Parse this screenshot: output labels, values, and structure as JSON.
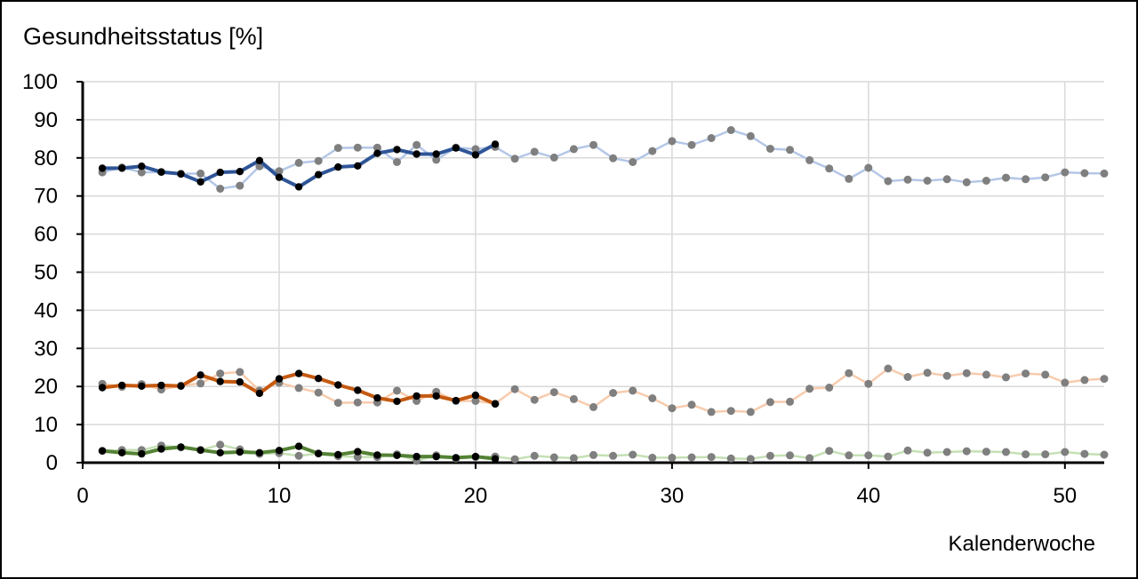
{
  "chart_data": {
    "type": "line",
    "ylabel": "Gesundheitsstatus [%]",
    "xlabel": "Kalenderwoche",
    "xlim": [
      0,
      52
    ],
    "ylim": [
      0,
      100
    ],
    "xticks": [
      0,
      10,
      20,
      30,
      40,
      50
    ],
    "yticks": [
      0,
      10,
      20,
      30,
      40,
      50,
      60,
      70,
      80,
      90,
      100
    ],
    "grid": true,
    "legend": "none",
    "series": [
      {
        "key": "blue_prev",
        "color": "#b4c7e7",
        "point_color": "#7f7f7f",
        "x": [
          1,
          2,
          3,
          4,
          5,
          6,
          7,
          8,
          9,
          10,
          11,
          12,
          13,
          14,
          15,
          16,
          17,
          18,
          19,
          20,
          21,
          22,
          23,
          24,
          25,
          26,
          27,
          28,
          29,
          30,
          31,
          32,
          33,
          34,
          35,
          36,
          37,
          38,
          39,
          40,
          41,
          42,
          43,
          44,
          45,
          46,
          47,
          48,
          49,
          50,
          51,
          52
        ],
        "values": [
          76.2,
          77.5,
          76.2,
          76.3,
          75.8,
          75.9,
          71.9,
          72.7,
          77.8,
          76.5,
          78.7,
          79.2,
          82.6,
          82.7,
          82.7,
          78.9,
          83.4,
          79.5,
          82.7,
          82.3,
          82.9,
          79.8,
          81.6,
          80.1,
          82.3,
          83.4,
          79.9,
          78.9,
          81.8,
          84.4,
          83.4,
          85.2,
          87.3,
          85.7,
          82.4,
          82.1,
          79.4,
          77.2,
          74.5,
          77.4,
          73.9,
          74.3,
          74.0,
          74.4,
          73.6,
          74.0,
          74.8,
          74.4,
          74.9,
          76.2,
          76.0,
          75.9
        ]
      },
      {
        "key": "orange_prev",
        "color": "#f8cbad",
        "point_color": "#7f7f7f",
        "x": [
          1,
          2,
          3,
          4,
          5,
          6,
          7,
          8,
          9,
          10,
          11,
          12,
          13,
          14,
          15,
          16,
          17,
          18,
          19,
          20,
          21,
          22,
          23,
          24,
          25,
          26,
          27,
          28,
          29,
          30,
          31,
          32,
          33,
          34,
          35,
          36,
          37,
          38,
          39,
          40,
          41,
          42,
          43,
          44,
          45,
          46,
          47,
          48,
          49,
          50,
          51,
          52
        ],
        "values": [
          20.7,
          19.9,
          20.6,
          19.2,
          20.2,
          20.8,
          23.4,
          23.8,
          18.9,
          21.0,
          19.6,
          18.4,
          15.7,
          15.8,
          15.8,
          18.9,
          16.2,
          18.6,
          16.2,
          16.2,
          15.5,
          19.3,
          16.5,
          18.5,
          16.7,
          14.6,
          18.3,
          18.9,
          16.9,
          14.3,
          15.2,
          13.3,
          13.6,
          13.3,
          15.9,
          16.0,
          19.4,
          19.7,
          23.5,
          20.7,
          24.7,
          22.5,
          23.6,
          22.8,
          23.5,
          23.1,
          22.4,
          23.4,
          23.1,
          21.0,
          21.7,
          22.0
        ]
      },
      {
        "key": "green_prev",
        "color": "#c5e0b4",
        "point_color": "#7f7f7f",
        "x": [
          1,
          2,
          3,
          4,
          5,
          6,
          7,
          8,
          9,
          10,
          11,
          12,
          13,
          14,
          15,
          16,
          17,
          18,
          19,
          20,
          21,
          22,
          23,
          24,
          25,
          26,
          27,
          28,
          29,
          30,
          31,
          32,
          33,
          34,
          35,
          36,
          37,
          38,
          39,
          40,
          41,
          42,
          43,
          44,
          45,
          46,
          47,
          48,
          49,
          50,
          51,
          52
        ],
        "values": [
          3.1,
          3.3,
          3.3,
          4.5,
          4.0,
          3.3,
          4.7,
          3.5,
          2.3,
          2.5,
          1.8,
          2.4,
          1.7,
          1.5,
          1.5,
          2.2,
          0.5,
          1.9,
          1.1,
          1.5,
          1.6,
          0.9,
          1.8,
          1.4,
          1.2,
          2.0,
          1.8,
          2.1,
          1.3,
          1.3,
          1.4,
          1.5,
          1.1,
          1.0,
          1.8,
          1.9,
          1.2,
          3.1,
          1.9,
          1.9,
          1.6,
          3.2,
          2.6,
          2.8,
          3.0,
          2.9,
          2.8,
          2.2,
          2.2,
          2.8,
          2.3,
          2.1
        ]
      },
      {
        "key": "blue_current",
        "color": "#2f5597",
        "point_color": "#000000",
        "x": [
          1,
          2,
          3,
          4,
          5,
          6,
          7,
          8,
          9,
          10,
          11,
          12,
          13,
          14,
          15,
          16,
          17,
          18,
          19,
          20,
          21
        ],
        "values": [
          77.3,
          77.3,
          77.8,
          76.3,
          75.8,
          73.7,
          76.2,
          76.4,
          79.3,
          74.9,
          72.4,
          75.6,
          77.6,
          77.9,
          81.2,
          82.2,
          81.0,
          81.0,
          82.6,
          80.8,
          83.6
        ]
      },
      {
        "key": "orange_current",
        "color": "#c55a11",
        "point_color": "#000000",
        "x": [
          1,
          2,
          3,
          4,
          5,
          6,
          7,
          8,
          9,
          10,
          11,
          12,
          13,
          14,
          15,
          16,
          17,
          18,
          19,
          20,
          21
        ],
        "values": [
          19.7,
          20.3,
          20.1,
          20.3,
          20.1,
          23.0,
          21.3,
          21.2,
          18.2,
          22.0,
          23.4,
          22.1,
          20.4,
          19.0,
          17.0,
          16.1,
          17.5,
          17.5,
          16.3,
          17.7,
          15.4
        ]
      },
      {
        "key": "green_current",
        "color": "#548235",
        "point_color": "#000000",
        "x": [
          1,
          2,
          3,
          4,
          5,
          6,
          7,
          8,
          9,
          10,
          11,
          12,
          13,
          14,
          15,
          16,
          17,
          18,
          19,
          20,
          21
        ],
        "values": [
          3.1,
          2.6,
          2.3,
          3.6,
          4.1,
          3.3,
          2.6,
          2.8,
          2.6,
          3.2,
          4.3,
          2.4,
          2.1,
          2.9,
          2.0,
          1.9,
          1.6,
          1.6,
          1.3,
          1.6,
          1.0
        ]
      }
    ]
  }
}
